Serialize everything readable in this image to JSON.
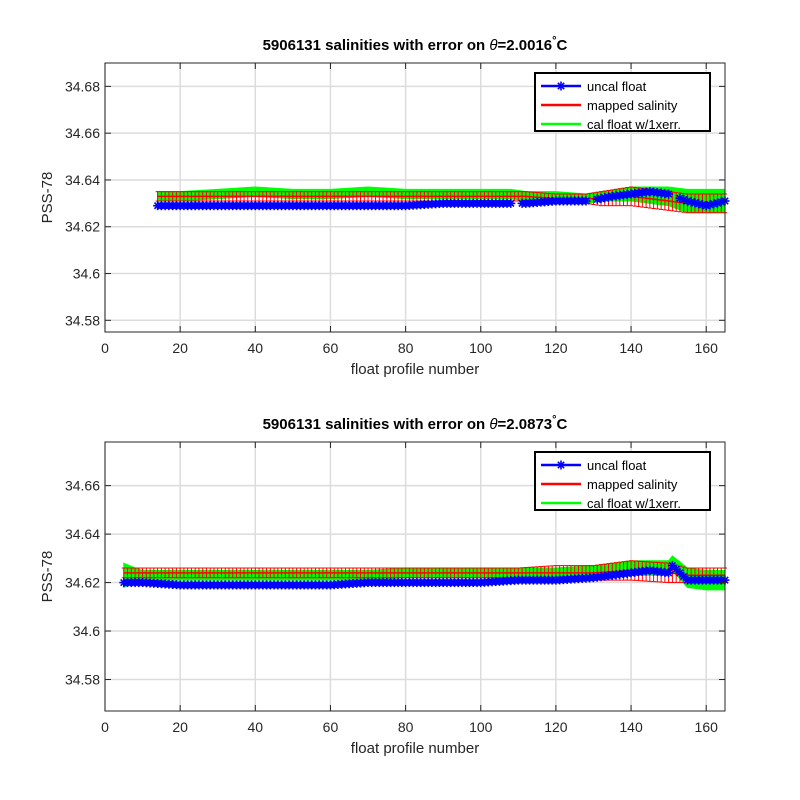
{
  "chart_data": [
    {
      "type": "line",
      "title_prefix": "5906131 salinities with error on ",
      "title_symbol": "θ",
      "title_value": "=2.0016",
      "title_degree": "°",
      "title_unit": "C",
      "xlabel": "float profile number",
      "ylabel": "PSS-78",
      "xlim": [
        0,
        165
      ],
      "ylim": [
        34.575,
        34.69
      ],
      "xticks": [
        "0",
        "20",
        "40",
        "60",
        "80",
        "100",
        "120",
        "140",
        "160"
      ],
      "yticks": [
        "34.58",
        "34.6",
        "34.62",
        "34.64",
        "34.66",
        "34.68"
      ],
      "grid": true,
      "legend_position": "top-right",
      "series": [
        {
          "name": "uncal float",
          "color": "#0000ff",
          "marker": "asterisk",
          "x": [
            14,
            20,
            30,
            40,
            50,
            55,
            60,
            70,
            80,
            90,
            100,
            108,
            112,
            120,
            128,
            132,
            135,
            140,
            145,
            150,
            155,
            160,
            165
          ],
          "y": [
            34.629,
            34.629,
            34.629,
            34.629,
            34.629,
            34.629,
            34.629,
            34.629,
            34.629,
            34.63,
            34.63,
            34.63,
            34.63,
            34.631,
            34.631,
            34.632,
            34.633,
            34.634,
            34.635,
            34.634,
            34.631,
            34.629,
            34.631
          ],
          "gaps_after_x": [
            108,
            128,
            150
          ]
        },
        {
          "name": "mapped salinity",
          "color": "#ff0000",
          "x": [
            14,
            20,
            30,
            40,
            50,
            60,
            70,
            80,
            90,
            100,
            108,
            112,
            120,
            128,
            132,
            140,
            150,
            155,
            160,
            165
          ],
          "y": [
            34.633,
            34.633,
            34.633,
            34.633,
            34.633,
            34.633,
            34.633,
            34.633,
            34.633,
            34.633,
            34.633,
            34.633,
            34.632,
            34.632,
            34.632,
            34.633,
            34.631,
            34.63,
            34.63,
            34.63
          ],
          "err": [
            0.002,
            0.002,
            0.002,
            0.002,
            0.002,
            0.002,
            0.002,
            0.002,
            0.002,
            0.002,
            0.002,
            0.002,
            0.002,
            0.002,
            0.003,
            0.004,
            0.004,
            0.004,
            0.004,
            0.004
          ]
        },
        {
          "name": "cal float w/1xerr.",
          "color": "#00ff00",
          "x": [
            14,
            20,
            30,
            40,
            50,
            60,
            70,
            80,
            90,
            100,
            108,
            112,
            120,
            128,
            132,
            140,
            150,
            155,
            160,
            165
          ],
          "center": [
            34.633,
            34.633,
            34.634,
            34.635,
            34.634,
            34.634,
            34.635,
            34.634,
            34.634,
            34.634,
            34.634,
            34.633,
            34.633,
            34.632,
            34.633,
            34.634,
            34.633,
            34.631,
            34.631,
            34.631
          ],
          "half_width": [
            0.002,
            0.002,
            0.002,
            0.002,
            0.002,
            0.002,
            0.002,
            0.002,
            0.002,
            0.002,
            0.002,
            0.002,
            0.002,
            0.002,
            0.002,
            0.003,
            0.004,
            0.005,
            0.005,
            0.005
          ]
        }
      ]
    },
    {
      "type": "line",
      "title_prefix": "5906131 salinities with error on ",
      "title_symbol": "θ",
      "title_value": "=2.0873",
      "title_degree": "°",
      "title_unit": "C",
      "xlabel": "float profile number",
      "ylabel": "PSS-78",
      "xlim": [
        0,
        165
      ],
      "ylim": [
        34.567,
        34.678
      ],
      "xticks": [
        "0",
        "20",
        "40",
        "60",
        "80",
        "100",
        "120",
        "140",
        "160"
      ],
      "yticks": [
        "34.58",
        "34.6",
        "34.62",
        "34.64",
        "34.66"
      ],
      "grid": true,
      "legend_position": "top-right",
      "series": [
        {
          "name": "uncal float",
          "color": "#0000ff",
          "marker": "asterisk",
          "x": [
            5,
            10,
            20,
            30,
            40,
            50,
            60,
            70,
            80,
            90,
            100,
            110,
            120,
            130,
            135,
            140,
            145,
            150,
            151,
            155,
            160,
            165
          ],
          "y": [
            34.62,
            34.62,
            34.619,
            34.619,
            34.619,
            34.619,
            34.619,
            34.62,
            34.62,
            34.62,
            34.62,
            34.621,
            34.621,
            34.622,
            34.623,
            34.624,
            34.625,
            34.624,
            34.627,
            34.621,
            34.621,
            34.621
          ],
          "gaps_after_x": []
        },
        {
          "name": "mapped salinity",
          "color": "#ff0000",
          "x": [
            5,
            10,
            20,
            30,
            40,
            50,
            60,
            70,
            80,
            90,
            100,
            110,
            120,
            130,
            140,
            150,
            155,
            160,
            165
          ],
          "y": [
            34.624,
            34.624,
            34.624,
            34.624,
            34.624,
            34.624,
            34.624,
            34.624,
            34.624,
            34.624,
            34.624,
            34.624,
            34.624,
            34.624,
            34.625,
            34.624,
            34.623,
            34.623,
            34.623
          ],
          "err": [
            0.002,
            0.002,
            0.002,
            0.002,
            0.002,
            0.002,
            0.002,
            0.002,
            0.002,
            0.002,
            0.002,
            0.002,
            0.003,
            0.003,
            0.004,
            0.004,
            0.003,
            0.003,
            0.003
          ]
        },
        {
          "name": "cal float w/1xerr.",
          "color": "#00ff00",
          "x": [
            5,
            8,
            10,
            20,
            30,
            40,
            50,
            60,
            70,
            80,
            90,
            100,
            110,
            120,
            130,
            140,
            145,
            150,
            151,
            155,
            160,
            165
          ],
          "center": [
            34.623,
            34.623,
            34.623,
            34.623,
            34.623,
            34.623,
            34.623,
            34.623,
            34.623,
            34.624,
            34.624,
            34.624,
            34.624,
            34.624,
            34.625,
            34.626,
            34.626,
            34.626,
            34.628,
            34.622,
            34.621,
            34.621
          ],
          "half_width": [
            0.005,
            0.003,
            0.002,
            0.002,
            0.002,
            0.002,
            0.002,
            0.002,
            0.002,
            0.002,
            0.002,
            0.002,
            0.002,
            0.002,
            0.002,
            0.003,
            0.003,
            0.003,
            0.003,
            0.004,
            0.004,
            0.004
          ]
        }
      ]
    }
  ]
}
